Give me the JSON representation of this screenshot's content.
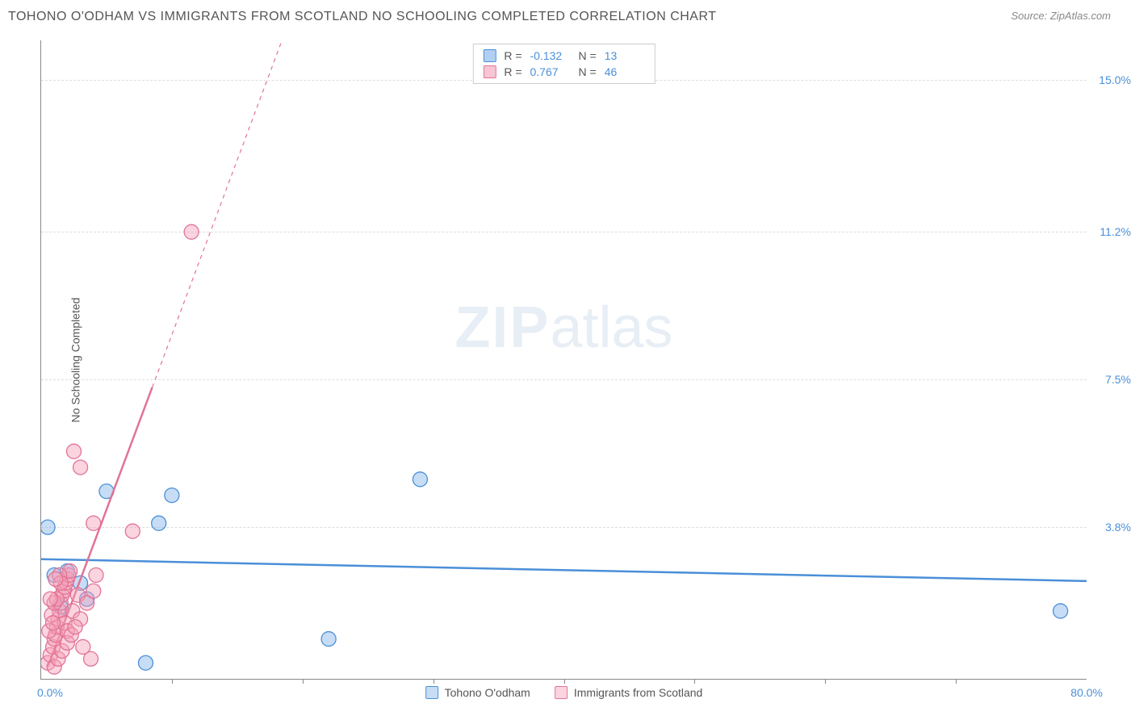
{
  "title": "TOHONO O'ODHAM VS IMMIGRANTS FROM SCOTLAND NO SCHOOLING COMPLETED CORRELATION CHART",
  "source": "Source: ZipAtlas.com",
  "watermark_zip": "ZIP",
  "watermark_atlas": "atlas",
  "chart": {
    "type": "scatter",
    "background_color": "#ffffff",
    "grid_color": "#dddddd",
    "axis_color": "#888888",
    "xlim": [
      0.0,
      80.0
    ],
    "ylim": [
      0.0,
      16.0
    ],
    "x_tick_labels": {
      "min": "0.0%",
      "max": "80.0%"
    },
    "y_tick_labels_right": [
      {
        "v": 15.0,
        "label": "15.0%"
      },
      {
        "v": 11.2,
        "label": "11.2%"
      },
      {
        "v": 7.5,
        "label": "7.5%"
      },
      {
        "v": 3.8,
        "label": "3.8%"
      }
    ],
    "x_grid_ticks": [
      10,
      20,
      30,
      40,
      50,
      60,
      70
    ],
    "y_label": "No Schooling Completed",
    "tick_color": "#4a8fd8",
    "tick_fontsize": 14,
    "label_fontsize": 14,
    "marker_radius": 9,
    "marker_stroke_width": 1.3,
    "series": [
      {
        "name": "Tohono O'odham",
        "color_fill": "rgba(130,180,235,0.45)",
        "color_stroke": "#4a8fd8",
        "R": "-0.132",
        "N": "13",
        "trend": {
          "x1": 0,
          "y1": 3.0,
          "x2": 80,
          "y2": 2.45,
          "dashed_after": null,
          "solid_end_x": 80,
          "width": 2.5
        },
        "points": [
          {
            "x": 0.5,
            "y": 3.8
          },
          {
            "x": 1.0,
            "y": 2.6
          },
          {
            "x": 3.0,
            "y": 2.4
          },
          {
            "x": 2.0,
            "y": 2.7
          },
          {
            "x": 8.0,
            "y": 0.4
          },
          {
            "x": 22.0,
            "y": 1.0
          },
          {
            "x": 5.0,
            "y": 4.7
          },
          {
            "x": 9.0,
            "y": 3.9
          },
          {
            "x": 10.0,
            "y": 4.6
          },
          {
            "x": 29.0,
            "y": 5.0
          },
          {
            "x": 78.0,
            "y": 1.7
          },
          {
            "x": 3.5,
            "y": 2.0
          },
          {
            "x": 1.5,
            "y": 1.8
          }
        ]
      },
      {
        "name": "Immigrants from Scotland",
        "color_fill": "rgba(245,160,185,0.45)",
        "color_stroke": "#e27396",
        "R": "0.767",
        "N": "46",
        "trend": {
          "x1": 0.5,
          "y1": 0.3,
          "x2": 19,
          "y2": 16.5,
          "dashed_after": 8.5,
          "solid_end_x": 8.5,
          "width": 2.5
        },
        "points": [
          {
            "x": 0.5,
            "y": 0.4
          },
          {
            "x": 0.7,
            "y": 0.6
          },
          {
            "x": 0.9,
            "y": 0.8
          },
          {
            "x": 1.0,
            "y": 1.0
          },
          {
            "x": 1.1,
            "y": 1.1
          },
          {
            "x": 1.2,
            "y": 1.3
          },
          {
            "x": 1.3,
            "y": 1.5
          },
          {
            "x": 1.4,
            "y": 1.7
          },
          {
            "x": 1.5,
            "y": 1.9
          },
          {
            "x": 1.6,
            "y": 2.1
          },
          {
            "x": 1.7,
            "y": 2.2
          },
          {
            "x": 1.8,
            "y": 2.3
          },
          {
            "x": 1.9,
            "y": 2.4
          },
          {
            "x": 2.0,
            "y": 2.5
          },
          {
            "x": 2.1,
            "y": 2.6
          },
          {
            "x": 2.2,
            "y": 2.7
          },
          {
            "x": 0.8,
            "y": 1.6
          },
          {
            "x": 1.0,
            "y": 1.9
          },
          {
            "x": 1.4,
            "y": 2.6
          },
          {
            "x": 1.8,
            "y": 1.4
          },
          {
            "x": 2.0,
            "y": 1.2
          },
          {
            "x": 2.4,
            "y": 1.7
          },
          {
            "x": 2.8,
            "y": 2.1
          },
          {
            "x": 3.0,
            "y": 1.5
          },
          {
            "x": 3.2,
            "y": 0.8
          },
          {
            "x": 3.5,
            "y": 1.9
          },
          {
            "x": 3.8,
            "y": 0.5
          },
          {
            "x": 4.0,
            "y": 2.2
          },
          {
            "x": 4.2,
            "y": 2.6
          },
          {
            "x": 4.0,
            "y": 3.9
          },
          {
            "x": 7.0,
            "y": 3.7
          },
          {
            "x": 2.5,
            "y": 5.7
          },
          {
            "x": 3.0,
            "y": 5.3
          },
          {
            "x": 11.5,
            "y": 11.2
          },
          {
            "x": 1.0,
            "y": 0.3
          },
          {
            "x": 1.3,
            "y": 0.5
          },
          {
            "x": 1.6,
            "y": 0.7
          },
          {
            "x": 2.0,
            "y": 0.9
          },
          {
            "x": 2.3,
            "y": 1.1
          },
          {
            "x": 2.6,
            "y": 1.3
          },
          {
            "x": 0.6,
            "y": 1.2
          },
          {
            "x": 0.9,
            "y": 1.4
          },
          {
            "x": 1.2,
            "y": 2.0
          },
          {
            "x": 1.5,
            "y": 2.4
          },
          {
            "x": 0.7,
            "y": 2.0
          },
          {
            "x": 1.1,
            "y": 2.5
          }
        ]
      }
    ],
    "legend_top": {
      "rows": [
        {
          "swatch": "blue",
          "r_label": "R =",
          "r_val": "-0.132",
          "n_label": "N =",
          "n_val": "13"
        },
        {
          "swatch": "pink",
          "r_label": "R =",
          "r_val": "0.767",
          "n_label": "N =",
          "n_val": "46"
        }
      ]
    }
  }
}
